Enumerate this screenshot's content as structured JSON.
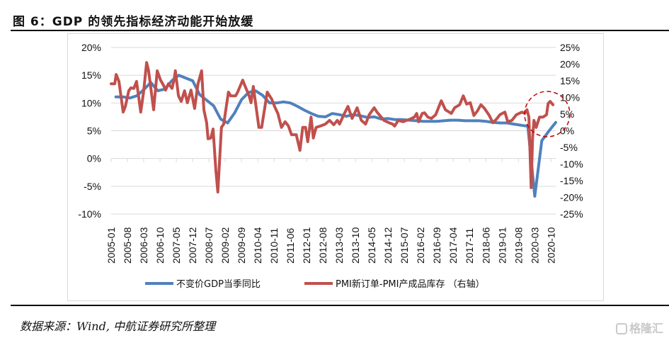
{
  "title": "图 6：GDP 的领先指标经济动能开始放缓",
  "source": "数据来源：Wind, 中航证券研究所整理",
  "watermark": "格隆汇",
  "chart_data": {
    "type": "line",
    "title": "图 6：GDP 的领先指标经济动能开始放缓",
    "x_unit": "decimal year",
    "x_range": [
      2005.0,
      2020.92
    ],
    "x_tick_labels": [
      "2005-01",
      "2005-08",
      "2006-03",
      "2006-10",
      "2007-05",
      "2007-12",
      "2008-07",
      "2009-02",
      "2009-09",
      "2010-04",
      "2010-11",
      "2011-06",
      "2012-01",
      "2012-08",
      "2013-03",
      "2013-10",
      "2014-05",
      "2014-12",
      "2015-07",
      "2016-02",
      "2016-09",
      "2017-04",
      "2017-11",
      "2018-06",
      "2019-01",
      "2019-08",
      "2020-03",
      "2020-10"
    ],
    "left_axis": {
      "ticks": [
        "20%",
        "15%",
        "10%",
        "5%",
        "0%",
        "-5%",
        "-10%"
      ],
      "ylim": [
        -10,
        20
      ]
    },
    "right_axis": {
      "ticks": [
        "25%",
        "20%",
        "15%",
        "10%",
        "5%",
        "0%",
        "-5%",
        "-10%",
        "-15%",
        "-20%",
        "-25%"
      ],
      "ylim": [
        -25,
        25
      ]
    },
    "grid": true,
    "legend_position": "bottom",
    "annotation": "dashed red circle around late-2020 values",
    "series": [
      {
        "name": "不变价GDP当季同比",
        "axis": "left",
        "color": "#4f81bd",
        "points": [
          [
            2005.17,
            11.1
          ],
          [
            2005.42,
            11.1
          ],
          [
            2005.67,
            10.9
          ],
          [
            2005.92,
            11.3
          ],
          [
            2006.17,
            12.4
          ],
          [
            2006.42,
            13.7
          ],
          [
            2006.67,
            12.2
          ],
          [
            2006.92,
            12.5
          ],
          [
            2007.17,
            14.0
          ],
          [
            2007.42,
            15.0
          ],
          [
            2007.67,
            14.5
          ],
          [
            2007.92,
            14.0
          ],
          [
            2008.17,
            11.5
          ],
          [
            2008.42,
            10.5
          ],
          [
            2008.67,
            9.5
          ],
          [
            2008.92,
            7.1
          ],
          [
            2009.17,
            6.4
          ],
          [
            2009.42,
            8.2
          ],
          [
            2009.67,
            10.6
          ],
          [
            2009.92,
            11.9
          ],
          [
            2010.17,
            12.2
          ],
          [
            2010.42,
            11.4
          ],
          [
            2010.67,
            10.0
          ],
          [
            2010.92,
            10.0
          ],
          [
            2011.17,
            10.2
          ],
          [
            2011.42,
            10.0
          ],
          [
            2011.67,
            9.4
          ],
          [
            2011.92,
            8.7
          ],
          [
            2012.17,
            8.1
          ],
          [
            2012.42,
            7.6
          ],
          [
            2012.67,
            7.5
          ],
          [
            2012.92,
            8.1
          ],
          [
            2013.17,
            7.9
          ],
          [
            2013.42,
            7.6
          ],
          [
            2013.67,
            7.9
          ],
          [
            2013.92,
            7.7
          ],
          [
            2014.17,
            7.4
          ],
          [
            2014.42,
            7.5
          ],
          [
            2014.67,
            7.1
          ],
          [
            2014.92,
            7.2
          ],
          [
            2015.17,
            7.0
          ],
          [
            2015.42,
            7.0
          ],
          [
            2015.67,
            6.9
          ],
          [
            2015.92,
            6.8
          ],
          [
            2016.17,
            6.7
          ],
          [
            2016.42,
            6.7
          ],
          [
            2016.67,
            6.7
          ],
          [
            2016.92,
            6.8
          ],
          [
            2017.17,
            6.9
          ],
          [
            2017.42,
            6.9
          ],
          [
            2017.67,
            6.8
          ],
          [
            2017.92,
            6.8
          ],
          [
            2018.17,
            6.8
          ],
          [
            2018.42,
            6.7
          ],
          [
            2018.67,
            6.5
          ],
          [
            2018.92,
            6.4
          ],
          [
            2019.17,
            6.4
          ],
          [
            2019.42,
            6.2
          ],
          [
            2019.67,
            6.0
          ],
          [
            2019.92,
            5.8
          ],
          [
            2020.17,
            -6.8
          ],
          [
            2020.42,
            3.2
          ],
          [
            2020.67,
            4.9
          ],
          [
            2020.92,
            6.5
          ]
        ]
      },
      {
        "name": "PMI新订单-PMI产成品库存 （右轴）",
        "axis": "right",
        "color": "#c0504d",
        "points": [
          [
            2005.0,
            14.1
          ],
          [
            2005.13,
            14.1
          ],
          [
            2005.18,
            16.9
          ],
          [
            2005.28,
            14.8
          ],
          [
            2005.43,
            5.6
          ],
          [
            2005.51,
            7.3
          ],
          [
            2005.63,
            12.0
          ],
          [
            2005.71,
            12.9
          ],
          [
            2005.81,
            12.7
          ],
          [
            2005.91,
            14.8
          ],
          [
            2006.06,
            5.6
          ],
          [
            2006.16,
            11.6
          ],
          [
            2006.27,
            20.5
          ],
          [
            2006.34,
            18.0
          ],
          [
            2006.52,
            6.3
          ],
          [
            2006.65,
            18.0
          ],
          [
            2006.77,
            15.2
          ],
          [
            2006.87,
            13.7
          ],
          [
            2006.95,
            12.2
          ],
          [
            2007.05,
            14.1
          ],
          [
            2007.18,
            12.7
          ],
          [
            2007.25,
            15.2
          ],
          [
            2007.3,
            18.0
          ],
          [
            2007.41,
            10.5
          ],
          [
            2007.51,
            8.8
          ],
          [
            2007.63,
            12.0
          ],
          [
            2007.73,
            8.4
          ],
          [
            2007.86,
            12.2
          ],
          [
            2007.99,
            6.7
          ],
          [
            2008.11,
            14.1
          ],
          [
            2008.24,
            18.0
          ],
          [
            2008.32,
            6.3
          ],
          [
            2008.42,
            2.4
          ],
          [
            2008.47,
            -2.4
          ],
          [
            2008.57,
            -2.2
          ],
          [
            2008.65,
            0.5
          ],
          [
            2008.75,
            -11.8
          ],
          [
            2008.82,
            -18.4
          ],
          [
            2008.95,
            1.0
          ],
          [
            2009.03,
            2.0
          ],
          [
            2009.2,
            11.6
          ],
          [
            2009.28,
            10.5
          ],
          [
            2009.46,
            10.5
          ],
          [
            2009.53,
            11.6
          ],
          [
            2009.71,
            15.2
          ],
          [
            2009.78,
            13.7
          ],
          [
            2009.94,
            10.5
          ],
          [
            2010.01,
            8.4
          ],
          [
            2010.09,
            13.3
          ],
          [
            2010.29,
            1.0
          ],
          [
            2010.39,
            1.0
          ],
          [
            2010.59,
            11.6
          ],
          [
            2010.75,
            9.5
          ],
          [
            2010.85,
            7.3
          ],
          [
            2010.97,
            5.2
          ],
          [
            2011.1,
            1.0
          ],
          [
            2011.23,
            2.7
          ],
          [
            2011.35,
            1.4
          ],
          [
            2011.46,
            -1.2
          ],
          [
            2011.63,
            -1.2
          ],
          [
            2011.76,
            -5.9
          ],
          [
            2011.86,
            1.0
          ],
          [
            2011.96,
            1.0
          ],
          [
            2012.04,
            -3.3
          ],
          [
            2012.16,
            4.1
          ],
          [
            2012.24,
            -2.2
          ],
          [
            2012.34,
            1.0
          ],
          [
            2012.49,
            1.4
          ],
          [
            2012.67,
            2.0
          ],
          [
            2012.82,
            3.1
          ],
          [
            2012.97,
            1.8
          ],
          [
            2013.1,
            3.1
          ],
          [
            2013.18,
            2.0
          ],
          [
            2013.33,
            4.8
          ],
          [
            2013.48,
            7.3
          ],
          [
            2013.63,
            3.7
          ],
          [
            2013.81,
            6.9
          ],
          [
            2013.96,
            3.1
          ],
          [
            2014.11,
            2.0
          ],
          [
            2014.24,
            4.8
          ],
          [
            2014.42,
            6.9
          ],
          [
            2014.52,
            5.6
          ],
          [
            2014.62,
            4.6
          ],
          [
            2014.77,
            3.1
          ],
          [
            2014.95,
            2.4
          ],
          [
            2015.08,
            2.0
          ],
          [
            2015.15,
            1.4
          ],
          [
            2015.28,
            3.1
          ],
          [
            2015.46,
            2.7
          ],
          [
            2015.58,
            3.1
          ],
          [
            2015.71,
            3.5
          ],
          [
            2015.86,
            4.1
          ],
          [
            2015.94,
            5.2
          ],
          [
            2016.01,
            2.7
          ],
          [
            2016.14,
            5.2
          ],
          [
            2016.22,
            5.4
          ],
          [
            2016.34,
            4.1
          ],
          [
            2016.47,
            3.7
          ],
          [
            2016.62,
            4.8
          ],
          [
            2016.82,
            9.0
          ],
          [
            2016.97,
            6.3
          ],
          [
            2017.18,
            5.2
          ],
          [
            2017.3,
            6.9
          ],
          [
            2017.48,
            7.8
          ],
          [
            2017.61,
            10.5
          ],
          [
            2017.73,
            8.0
          ],
          [
            2017.86,
            8.4
          ],
          [
            2017.99,
            4.6
          ],
          [
            2018.11,
            5.9
          ],
          [
            2018.24,
            7.8
          ],
          [
            2018.37,
            6.7
          ],
          [
            2018.54,
            4.6
          ],
          [
            2018.67,
            2.4
          ],
          [
            2018.8,
            3.5
          ],
          [
            2018.92,
            4.8
          ],
          [
            2019.1,
            5.6
          ],
          [
            2019.2,
            2.7
          ],
          [
            2019.35,
            3.1
          ],
          [
            2019.51,
            4.8
          ],
          [
            2019.71,
            5.6
          ],
          [
            2019.81,
            5.2
          ],
          [
            2019.89,
            6.3
          ],
          [
            2019.96,
            4.1
          ],
          [
            2020.04,
            -17.1
          ],
          [
            2020.09,
            -2.2
          ],
          [
            2020.14,
            3.1
          ],
          [
            2020.22,
            1.0
          ],
          [
            2020.34,
            4.1
          ],
          [
            2020.47,
            4.1
          ],
          [
            2020.59,
            4.8
          ],
          [
            2020.65,
            8.2
          ],
          [
            2020.72,
            8.8
          ],
          [
            2020.82,
            7.8
          ]
        ]
      }
    ]
  }
}
